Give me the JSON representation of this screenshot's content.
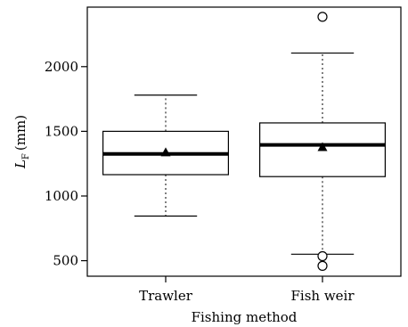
{
  "chart_data": {
    "type": "box",
    "title": "",
    "xlabel": "Fishing method",
    "ylabel": {
      "symbol": "L",
      "subscript": "F",
      "unit": "(mm)"
    },
    "ylim": [
      380,
      2460
    ],
    "yticks": [
      500,
      1000,
      1500,
      2000
    ],
    "categories": [
      "Trawler",
      "Fish weir"
    ],
    "series": [
      {
        "category": "Trawler",
        "whisker_low": 845,
        "q1": 1165,
        "median": 1325,
        "q3": 1500,
        "whisker_high": 1780,
        "mean": 1335,
        "outliers": []
      },
      {
        "category": "Fish weir",
        "whisker_low": 550,
        "q1": 1150,
        "median": 1395,
        "q3": 1565,
        "whisker_high": 2105,
        "mean": 1375,
        "outliers": [
          2385,
          535,
          460
        ]
      }
    ],
    "grid": false,
    "legend": "none"
  }
}
